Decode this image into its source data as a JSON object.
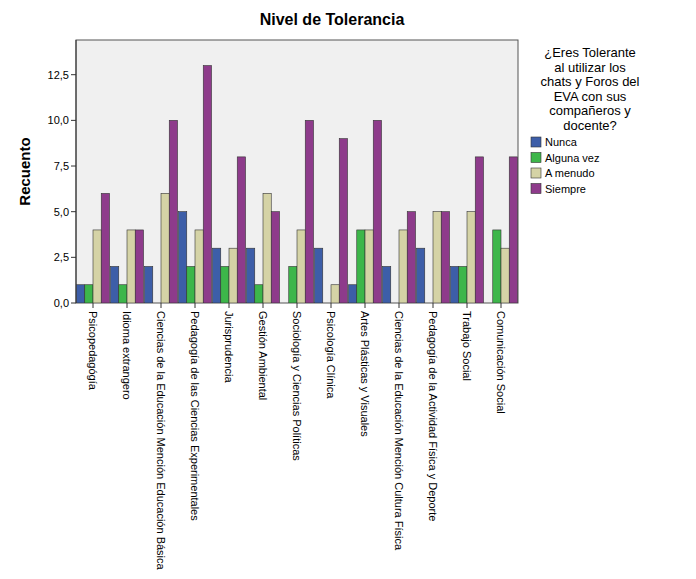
{
  "chart_data": {
    "type": "bar",
    "title": "Nivel de Tolerancia",
    "y_label": "Recuento",
    "legend_title": "¿Eres Tolerante al utilizar los chats y Foros del EVA con sus compañeros y docente?",
    "categories": [
      "Psicopedagógía",
      "Idioma extrangero",
      "Ciencias de la Educación Mención Educación Básica",
      "Pedagogía de las Ciencias Experimentales",
      "Jurisprudencia",
      "Gestión Ambiental",
      "Sociología y Ciencias Políticas",
      "Psicología Clínica",
      "Artes Plásticas y Visuales",
      "Ciencias de la Educación Mención Cultura Física",
      "Pedagogía de la Actividad Física y Deporte",
      "Trabajo Social",
      "Comunicación Social"
    ],
    "series": [
      {
        "name": "Nunca",
        "color": "#3d5ea8",
        "values": [
          1,
          2,
          2,
          5,
          3,
          3,
          0,
          3,
          1,
          2,
          3,
          2,
          0
        ]
      },
      {
        "name": "Alguna vez",
        "color": "#3db64a",
        "values": [
          1,
          1,
          0,
          2,
          2,
          1,
          2,
          0,
          4,
          0,
          0,
          2,
          4
        ]
      },
      {
        "name": "A menudo",
        "color": "#d5d3a6",
        "values": [
          4,
          4,
          6,
          4,
          3,
          6,
          4,
          1,
          4,
          4,
          5,
          5,
          3
        ]
      },
      {
        "name": "Siempre",
        "color": "#8e3b8b",
        "values": [
          6,
          4,
          10,
          13,
          8,
          5,
          10,
          9,
          10,
          5,
          5,
          8,
          8
        ]
      }
    ],
    "ylim": [
      0,
      14.4
    ],
    "yticks": [
      {
        "value": 0,
        "label": "0,0"
      },
      {
        "value": 2.5,
        "label": "2,5"
      },
      {
        "value": 5,
        "label": "5,0"
      },
      {
        "value": 7.5,
        "label": "7,5"
      },
      {
        "value": 10,
        "label": "10,0"
      },
      {
        "value": 12.5,
        "label": "12,5"
      }
    ],
    "grid": false,
    "legend": "right"
  }
}
